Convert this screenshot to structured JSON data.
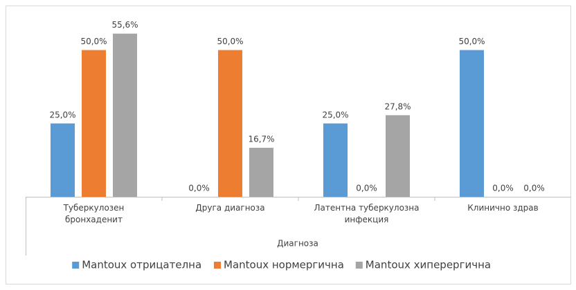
{
  "chart_data": {
    "type": "bar",
    "x_label": "Диагноза",
    "categories": [
      "Туберкулозен бронхаденит",
      "Друга диагноза",
      "Латентна туберкулозна инфекция",
      "Клинично здрав"
    ],
    "series": [
      {
        "name": "Mantoux отрицателна",
        "color": "#5b9bd5",
        "values": [
          25.0,
          0.0,
          25.0,
          50.0
        ],
        "value_labels": [
          "25,0%",
          "0,0%",
          "25,0%",
          "50,0%"
        ]
      },
      {
        "name": "Mantoux нормергична",
        "color": "#ed7d31",
        "values": [
          50.0,
          50.0,
          0.0,
          0.0
        ],
        "value_labels": [
          "50,0%",
          "50,0%",
          "0,0%",
          "0,0%"
        ]
      },
      {
        "name": "Mantoux хиперергична",
        "color": "#a5a5a5",
        "values": [
          55.6,
          16.7,
          27.8,
          0.0
        ],
        "value_labels": [
          "55,6%",
          "16,7%",
          "27,8%",
          "0,0%"
        ]
      }
    ],
    "ylim": [
      0,
      60
    ],
    "legend": "bottom"
  }
}
